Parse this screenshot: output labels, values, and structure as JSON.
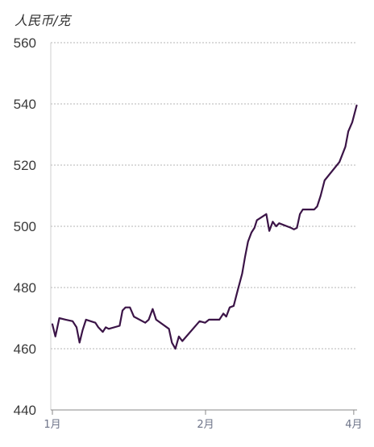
{
  "chart_data": {
    "type": "line",
    "ylabel": "人民币/克",
    "ylim": [
      440,
      560
    ],
    "y_ticks": [
      440,
      460,
      480,
      500,
      520,
      540,
      560
    ],
    "x_tick_labels": [
      {
        "label": "1月",
        "x": 0
      },
      {
        "label": "2月",
        "x": 31
      },
      {
        "label": "4月",
        "x": 61
      }
    ],
    "xlim": [
      0,
      62
    ],
    "grid": "horizontal-dotted",
    "series": [
      {
        "color": "#3b1447",
        "points": [
          [
            0,
            468
          ],
          [
            0.6,
            464
          ],
          [
            1.4,
            470
          ],
          [
            2.7,
            469.5
          ],
          [
            4.1,
            469
          ],
          [
            4.9,
            467
          ],
          [
            5.5,
            462
          ],
          [
            6.1,
            466
          ],
          [
            6.8,
            469.5
          ],
          [
            8.7,
            468.5
          ],
          [
            9.3,
            467
          ],
          [
            10.2,
            465.5
          ],
          [
            10.8,
            467
          ],
          [
            11.4,
            466.5
          ],
          [
            13.6,
            467.5
          ],
          [
            14.2,
            472.5
          ],
          [
            14.8,
            473.5
          ],
          [
            15.7,
            473.5
          ],
          [
            16.5,
            470.5
          ],
          [
            18.8,
            468.5
          ],
          [
            19.5,
            469.5
          ],
          [
            20.3,
            473
          ],
          [
            21.0,
            469.5
          ],
          [
            23.6,
            466.5
          ],
          [
            24.2,
            462
          ],
          [
            24.9,
            460
          ],
          [
            25.6,
            464
          ],
          [
            26.3,
            462.5
          ],
          [
            29.8,
            469
          ],
          [
            30.9,
            468.5
          ],
          [
            31.7,
            469.5
          ],
          [
            33.8,
            469.5
          ],
          [
            34.6,
            471.5
          ],
          [
            35.2,
            470.5
          ],
          [
            35.9,
            473.5
          ],
          [
            36.7,
            474
          ],
          [
            37.5,
            479
          ],
          [
            38.4,
            484.5
          ],
          [
            39.0,
            490
          ],
          [
            39.6,
            495
          ],
          [
            40.3,
            498
          ],
          [
            40.9,
            499.5
          ],
          [
            41.4,
            502
          ],
          [
            43.3,
            504
          ],
          [
            43.9,
            498.5
          ],
          [
            44.6,
            501.5
          ],
          [
            45.3,
            500
          ],
          [
            45.9,
            501
          ],
          [
            48.3,
            499.5
          ],
          [
            48.9,
            499
          ],
          [
            49.5,
            499.5
          ],
          [
            50.1,
            504
          ],
          [
            50.7,
            505.5
          ],
          [
            52.3,
            505.5
          ],
          [
            53.0,
            505.5
          ],
          [
            53.6,
            506.5
          ],
          [
            54.3,
            510
          ],
          [
            55.1,
            515
          ],
          [
            58.1,
            521
          ],
          [
            59.3,
            526
          ],
          [
            59.9,
            531
          ],
          [
            60.7,
            534
          ],
          [
            61.6,
            539.5
          ]
        ]
      }
    ]
  }
}
